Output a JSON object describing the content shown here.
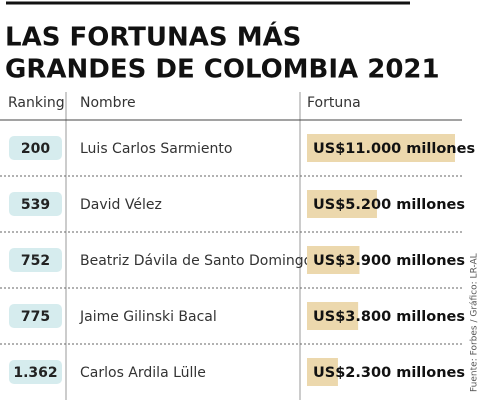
{
  "chart_data": {
    "type": "bar",
    "title_lines": [
      "LAS FORTUNAS MÁS",
      "GRANDES DE COLOMBIA 2021"
    ],
    "headers": [
      "Ranking",
      "Nombre",
      "Fortuna"
    ],
    "ranking": [
      "200",
      "539",
      "752",
      "775",
      "1.362"
    ],
    "categories": [
      "Luis Carlos Sarmiento",
      "David Vélez",
      "Beatriz Dávila de Santo Domingo",
      "Jaime Gilinski Bacal",
      "Carlos Ardila Lülle"
    ],
    "values": [
      11000,
      5200,
      3900,
      3800,
      2300
    ],
    "value_labels": [
      "US$11.000 millones",
      "US$5.200 millones",
      "US$3.900 millones",
      "US$3.800 millones",
      "US$2.300 millones"
    ],
    "color": "#ecd8ad",
    "rank_color": "#d6ecee",
    "source": "Fuente: Forbes / Gráfico: LR-AL"
  }
}
